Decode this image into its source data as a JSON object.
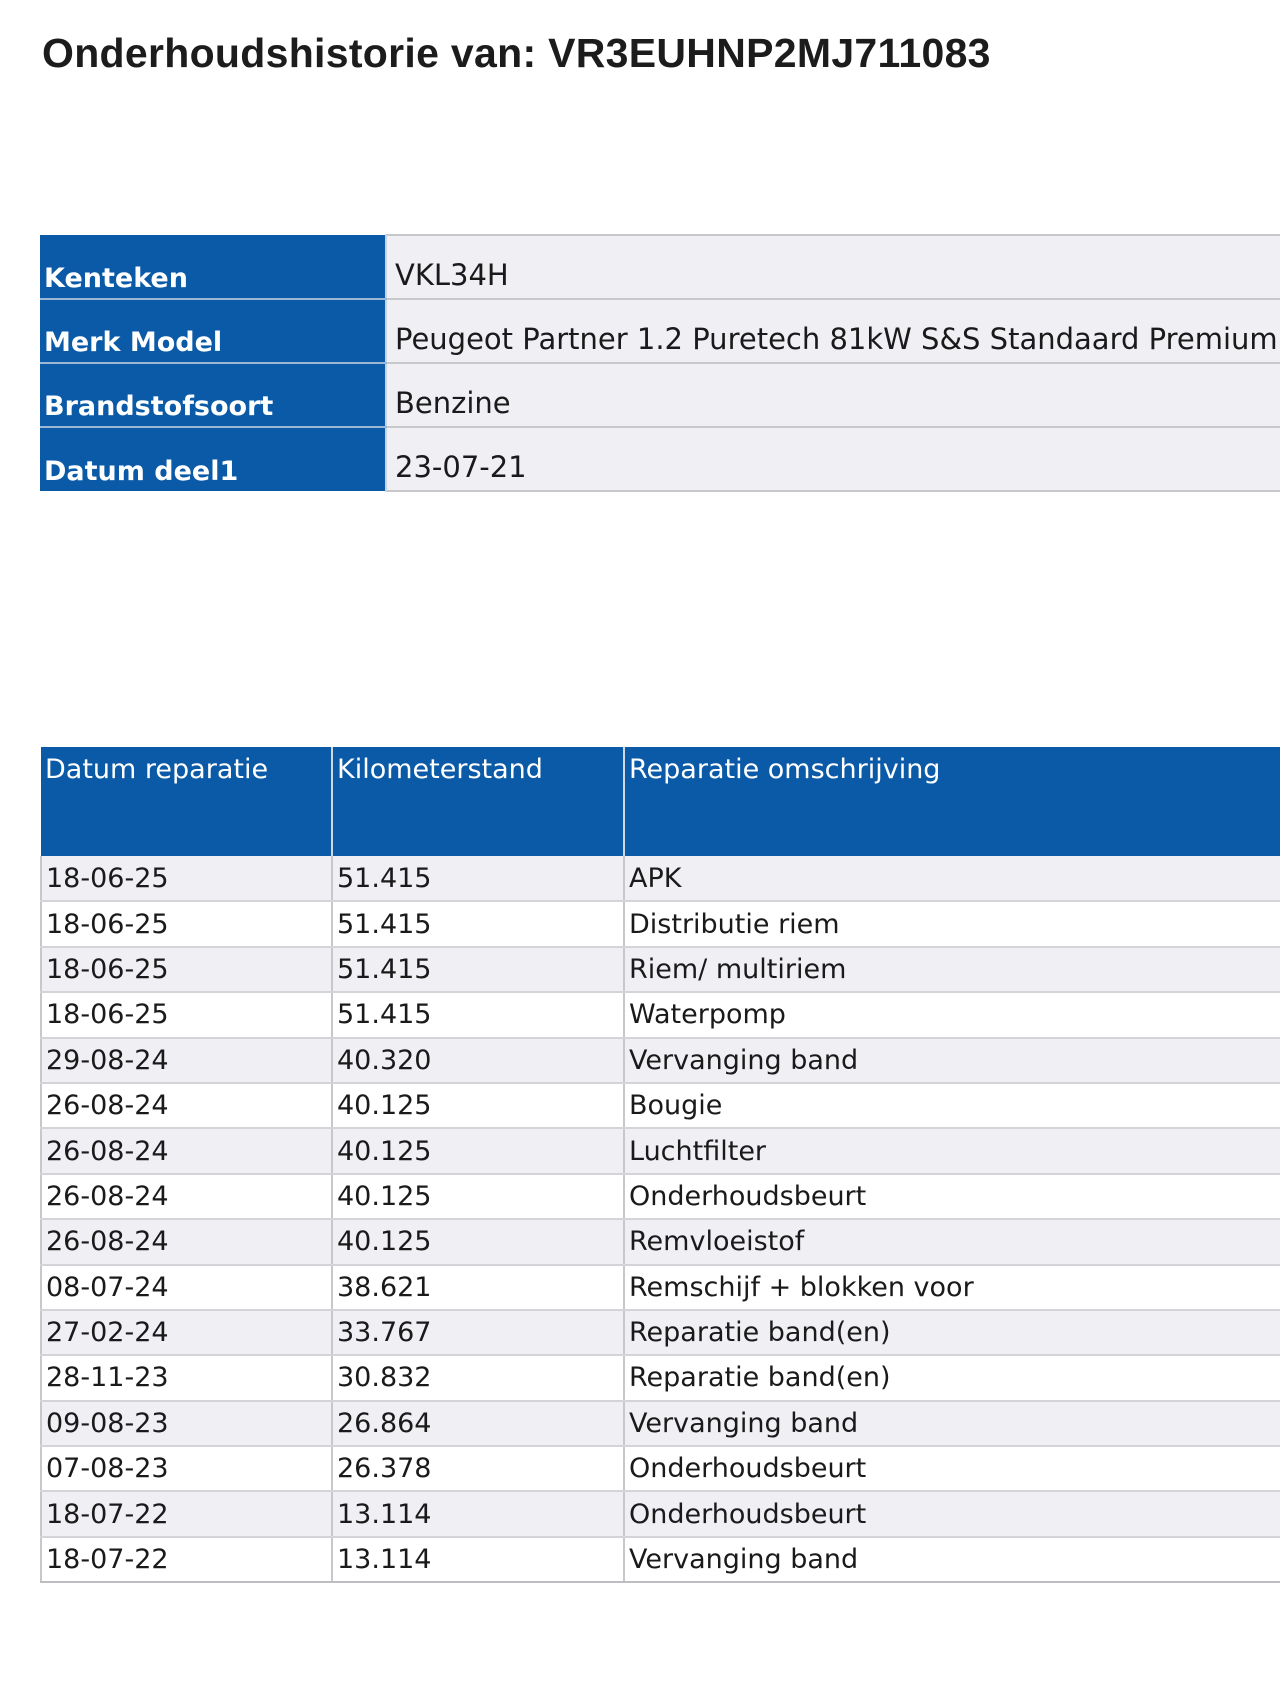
{
  "page": {
    "title": "Onderhoudshistorie van: VR3EUHNP2MJ711083"
  },
  "vehicle_info": [
    {
      "label": "Kenteken",
      "value": "VKL34H"
    },
    {
      "label": "Merk Model",
      "value": "Peugeot Partner 1.2 Puretech 81kW S&S Standaard Premium"
    },
    {
      "label": "Brandstofsoort",
      "value": "Benzine"
    },
    {
      "label": "Datum deel1",
      "value": "23-07-21"
    }
  ],
  "history": {
    "headers": {
      "date": "Datum reparatie",
      "mileage": "Kilometerstand",
      "description": "Reparatie omschrijving"
    },
    "rows": [
      {
        "date": "18-06-25",
        "mileage": "51.415",
        "description": "APK"
      },
      {
        "date": "18-06-25",
        "mileage": "51.415",
        "description": "Distributie riem"
      },
      {
        "date": "18-06-25",
        "mileage": "51.415",
        "description": "Riem/ multiriem"
      },
      {
        "date": "18-06-25",
        "mileage": "51.415",
        "description": "Waterpomp"
      },
      {
        "date": "29-08-24",
        "mileage": "40.320",
        "description": "Vervanging band"
      },
      {
        "date": "26-08-24",
        "mileage": "40.125",
        "description": "Bougie"
      },
      {
        "date": "26-08-24",
        "mileage": "40.125",
        "description": "Luchtfilter"
      },
      {
        "date": "26-08-24",
        "mileage": "40.125",
        "description": "Onderhoudsbeurt"
      },
      {
        "date": "26-08-24",
        "mileage": "40.125",
        "description": "Remvloeistof"
      },
      {
        "date": "08-07-24",
        "mileage": "38.621",
        "description": "Remschijf + blokken voor"
      },
      {
        "date": "27-02-24",
        "mileage": "33.767",
        "description": "Reparatie band(en)"
      },
      {
        "date": "28-11-23",
        "mileage": "30.832",
        "description": "Reparatie band(en)"
      },
      {
        "date": "09-08-23",
        "mileage": "26.864",
        "description": "Vervanging band"
      },
      {
        "date": "07-08-23",
        "mileage": "26.378",
        "description": "Onderhoudsbeurt"
      },
      {
        "date": "18-07-22",
        "mileage": "13.114",
        "description": "Onderhoudsbeurt"
      },
      {
        "date": "18-07-22",
        "mileage": "13.114",
        "description": "Vervanging band"
      }
    ]
  },
  "colors": {
    "header_blue": "#0a5aa8",
    "row_shade": "#efeff4"
  }
}
